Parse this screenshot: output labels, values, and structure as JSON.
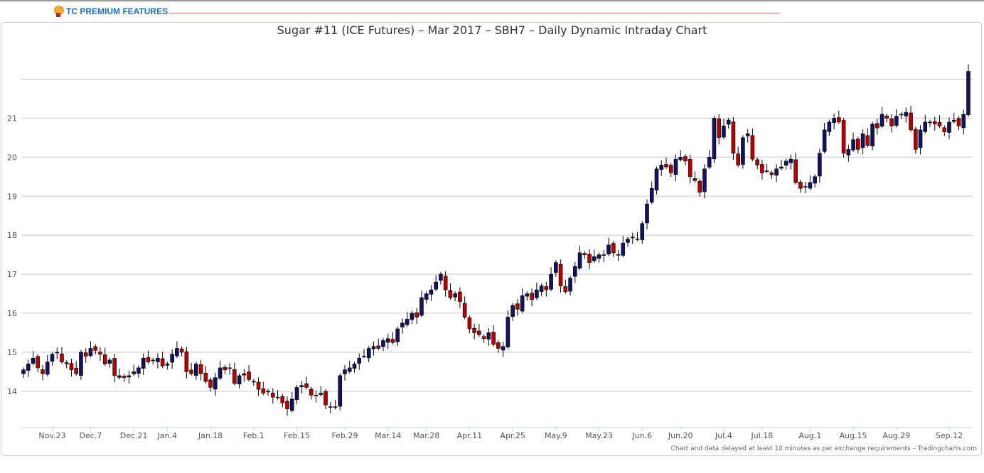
{
  "header": {
    "premium_label": "TC PREMIUM FEATURES"
  },
  "footer": {
    "note": "Chart and data delayed at least 10 minutes as per exchange requirements – Tradingcharts.com"
  },
  "colors": {
    "up": "#12125e",
    "down": "#b80000",
    "grid": "#c8c8c8"
  },
  "chart_data": {
    "type": "candlestick",
    "title": "Sugar #11 (ICE Futures) – Mar 2017 – SBH7 – Daily Dynamic Intraday Chart",
    "ylim": [
      13.07,
      22.3
    ],
    "y_ticks": [
      14,
      15,
      16,
      17,
      18,
      19,
      20,
      21
    ],
    "x_ticks": [
      {
        "label": "Nov.23",
        "index": 6
      },
      {
        "label": "Dec.7",
        "index": 14
      },
      {
        "label": "Dec.21",
        "index": 23
      },
      {
        "label": "Jan.4",
        "index": 30
      },
      {
        "label": "Jan.18",
        "index": 39
      },
      {
        "label": "Feb.1",
        "index": 48
      },
      {
        "label": "Feb.15",
        "index": 57
      },
      {
        "label": "Feb.29",
        "index": 67
      },
      {
        "label": "Mar.14",
        "index": 76
      },
      {
        "label": "Mar.28",
        "index": 84
      },
      {
        "label": "Apr.11",
        "index": 93
      },
      {
        "label": "Apr.25",
        "index": 102
      },
      {
        "label": "May.9",
        "index": 111
      },
      {
        "label": "May.23",
        "index": 120
      },
      {
        "label": "Jun.6",
        "index": 129
      },
      {
        "label": "Jun.20",
        "index": 137
      },
      {
        "label": "Jul.4",
        "index": 146
      },
      {
        "label": "Jul.18",
        "index": 154
      },
      {
        "label": "Aug.1",
        "index": 164
      },
      {
        "label": "Aug.15",
        "index": 173
      },
      {
        "label": "Aug.29",
        "index": 182
      },
      {
        "label": "Sep.12",
        "index": 193
      }
    ],
    "close": [
      14.55,
      14.7,
      14.85,
      14.6,
      14.45,
      14.75,
      14.95,
      15.0,
      14.75,
      14.7,
      14.55,
      14.45,
      15.0,
      14.9,
      15.1,
      15.05,
      14.95,
      14.7,
      14.8,
      14.4,
      14.4,
      14.35,
      14.4,
      14.5,
      14.6,
      14.85,
      14.75,
      14.8,
      14.85,
      14.65,
      14.7,
      14.95,
      15.1,
      15.0,
      14.5,
      14.45,
      14.7,
      14.45,
      14.25,
      14.1,
      14.35,
      14.6,
      14.55,
      14.6,
      14.2,
      14.4,
      14.45,
      14.3,
      14.25,
      14.05,
      13.95,
      14.0,
      13.85,
      13.85,
      13.7,
      13.55,
      13.8,
      14.1,
      14.15,
      14.1,
      13.9,
      13.9,
      13.95,
      13.65,
      13.6,
      13.6,
      14.4,
      14.55,
      14.6,
      14.7,
      14.85,
      14.9,
      15.1,
      15.15,
      15.1,
      15.3,
      15.35,
      15.25,
      15.6,
      15.75,
      15.85,
      16.0,
      15.9,
      16.4,
      16.5,
      16.6,
      16.8,
      17.0,
      16.6,
      16.4,
      16.5,
      16.3,
      15.9,
      15.6,
      15.5,
      15.45,
      15.35,
      15.5,
      15.2,
      15.1,
      15.15,
      15.9,
      16.2,
      16.1,
      16.45,
      16.5,
      16.35,
      16.6,
      16.7,
      16.6,
      17.0,
      17.3,
      16.7,
      16.55,
      16.9,
      17.2,
      17.55,
      17.5,
      17.3,
      17.45,
      17.5,
      17.5,
      17.75,
      17.55,
      17.5,
      17.8,
      17.9,
      17.95,
      17.9,
      18.3,
      18.8,
      19.2,
      19.7,
      19.8,
      19.75,
      19.6,
      19.95,
      20.0,
      19.9,
      19.5,
      19.4,
      19.1,
      19.7,
      20.0,
      21.0,
      20.5,
      20.8,
      20.95,
      20.1,
      19.8,
      20.5,
      20.6,
      19.95,
      19.8,
      19.6,
      19.65,
      19.55,
      19.7,
      19.75,
      19.9,
      19.95,
      19.35,
      19.2,
      19.25,
      19.35,
      19.5,
      20.1,
      20.7,
      20.9,
      21.0,
      20.9,
      20.1,
      20.2,
      20.45,
      20.2,
      20.6,
      20.3,
      20.85,
      20.75,
      21.1,
      21.0,
      20.8,
      21.05,
      21.1,
      21.15,
      20.7,
      20.2,
      20.7,
      20.9,
      20.9,
      20.85,
      20.8,
      20.65,
      20.9,
      20.95,
      20.8,
      21.1,
      22.2
    ]
  }
}
